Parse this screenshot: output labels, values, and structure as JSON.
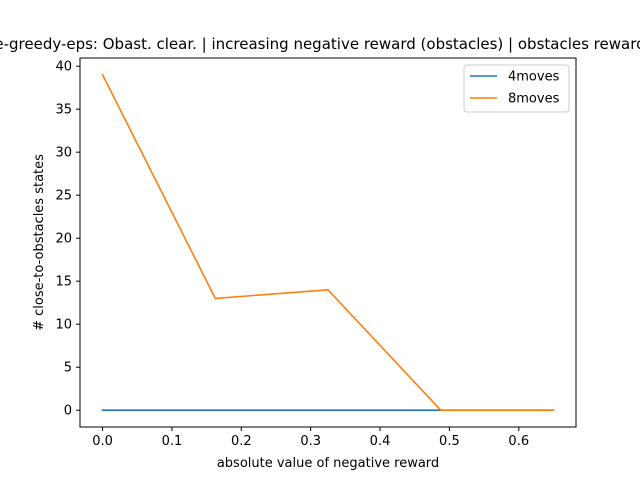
{
  "chart_data": {
    "type": "line",
    "title": "e-greedy-eps: Obast. clear. | increasing negative reward (obstacles) | obstacles reward",
    "xlabel": "absolute value of negative reward",
    "ylabel": "# close-to-obstacles states",
    "xlim": [
      -0.0325,
      0.6825
    ],
    "ylim": [
      -1.95,
      40.95
    ],
    "xticks": [
      0.0,
      0.1,
      0.2,
      0.3,
      0.4,
      0.5,
      0.6
    ],
    "xtick_labels": [
      "0.0",
      "0.1",
      "0.2",
      "0.3",
      "0.4",
      "0.5",
      "0.6"
    ],
    "yticks": [
      0,
      5,
      10,
      15,
      20,
      25,
      30,
      35,
      40
    ],
    "ytick_labels": [
      "0",
      "5",
      "10",
      "15",
      "20",
      "25",
      "30",
      "35",
      "40"
    ],
    "grid": false,
    "legend_position": "top-right",
    "series": [
      {
        "name": "4moves",
        "color": "#1f77b4",
        "x": [
          0.0,
          0.1625,
          0.325,
          0.4875,
          0.65
        ],
        "values": [
          0,
          0,
          0,
          0,
          0
        ]
      },
      {
        "name": "8moves",
        "color": "#ff7f0e",
        "x": [
          0.0,
          0.1625,
          0.325,
          0.4875,
          0.65
        ],
        "values": [
          39,
          13,
          14,
          0,
          0
        ]
      }
    ]
  }
}
